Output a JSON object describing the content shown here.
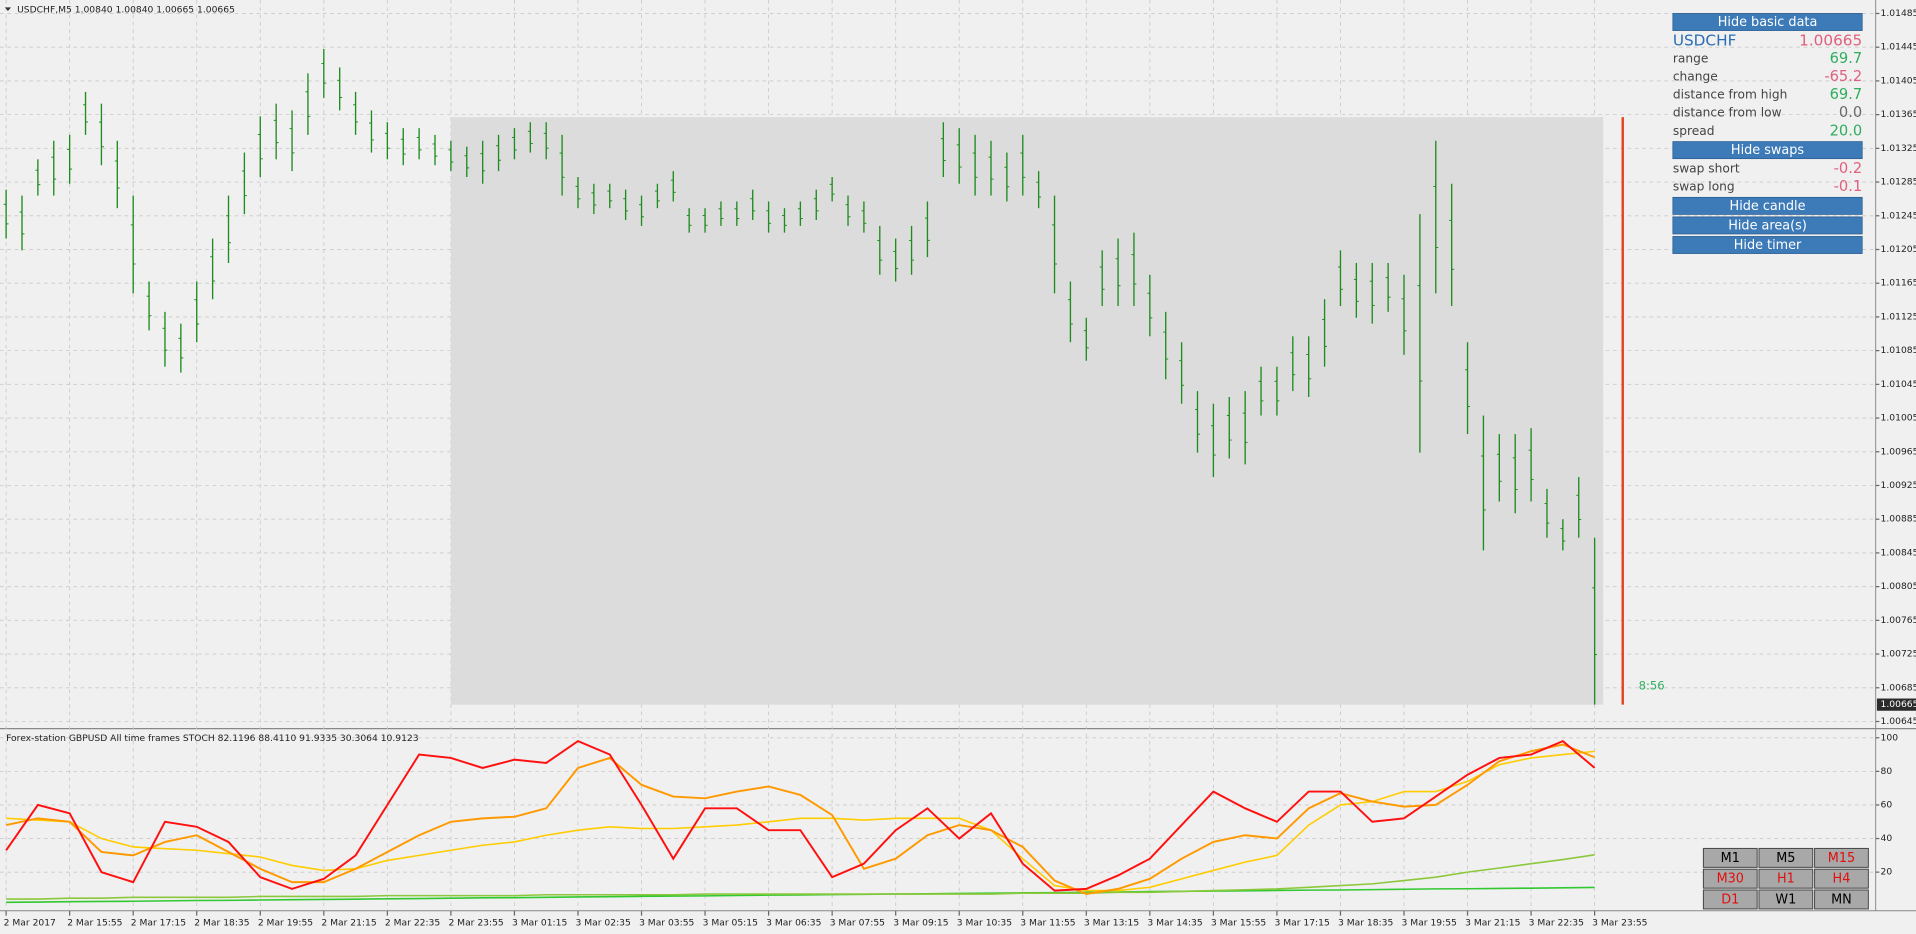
{
  "chart_data": [
    {
      "type": "ohlc",
      "title": "USDCHF,M5  1.00840 1.00840 1.00665 1.00665",
      "color": "#1e8c1e",
      "grid": true,
      "categories": [
        "2 Mar 2017",
        null,
        null,
        null,
        "2 Mar 15:55",
        null,
        null,
        null,
        "2 Mar 17:15",
        null,
        null,
        null,
        "2 Mar 18:35",
        null,
        null,
        null,
        "2 Mar 19:55",
        null,
        null,
        null,
        "2 Mar 21:15",
        null,
        null,
        null,
        "2 Mar 22:35",
        null,
        null,
        null,
        "2 Mar 23:55",
        null,
        null,
        null,
        "3 Mar 01:15",
        null,
        null,
        null,
        "3 Mar 02:35",
        null,
        null,
        null,
        "3 Mar 03:55",
        null,
        null,
        null,
        "3 Mar 05:15",
        null,
        null,
        null,
        "3 Mar 06:35",
        null,
        null,
        null,
        "3 Mar 07:55",
        null,
        null,
        null,
        "3 Mar 09:15",
        null,
        null,
        null,
        "3 Mar 10:35",
        null,
        null,
        null,
        "3 Mar 11:55",
        null,
        null,
        null,
        "3 Mar 13:15",
        null,
        null,
        null,
        "3 Mar 14:35",
        null,
        null,
        null,
        "3 Mar 15:55",
        null,
        null,
        null,
        "3 Mar 17:15",
        null,
        null,
        null,
        "3 Mar 18:35",
        null,
        null,
        null,
        "3 Mar 19:55",
        null,
        null,
        null,
        "3 Mar 21:15",
        null,
        null,
        null,
        "3 Mar 22:35",
        null,
        null,
        null,
        "3 Mar 23:55"
      ],
      "high": [
        1.01276,
        1.01269,
        1.01312,
        1.01334,
        1.01341,
        1.01392,
        1.01378,
        1.01334,
        1.01269,
        1.01167,
        1.01131,
        1.01117,
        1.01167,
        1.01218,
        1.01269,
        1.0132,
        1.01363,
        1.01378,
        1.0137,
        1.01414,
        1.01443,
        1.01421,
        1.01392,
        1.0137,
        1.01356,
        1.01349,
        1.01349,
        1.01341,
        1.01334,
        1.01327,
        1.01334,
        1.01341,
        1.01349,
        1.01356,
        1.01356,
        1.01341,
        1.01291,
        1.01283,
        1.01283,
        1.01276,
        1.01269,
        1.01283,
        1.01298,
        1.01254,
        1.01254,
        1.01262,
        1.01262,
        1.01276,
        1.01262,
        1.01254,
        1.01262,
        1.01276,
        1.01291,
        1.01269,
        1.01262,
        1.01233,
        1.01218,
        1.01233,
        1.01262,
        1.01356,
        1.01349,
        1.01341,
        1.01334,
        1.0132,
        1.01341,
        1.01298,
        1.01269,
        1.01167,
        1.01124,
        1.01204,
        1.01218,
        1.01225,
        1.01175,
        1.01131,
        1.01095,
        1.01037,
        1.01022,
        1.0103,
        1.01037,
        1.01066,
        1.01066,
        1.01102,
        1.01102,
        1.01146,
        1.01204,
        1.01189,
        1.01189,
        1.01189,
        1.01175,
        1.01247,
        1.01334,
        1.01283,
        1.01095,
        1.01008,
        1.00986,
        1.00986,
        1.00993,
        1.00921,
        1.00885,
        1.00935,
        1.00863
      ],
      "low": [
        1.01218,
        1.01204,
        1.01269,
        1.01269,
        1.01283,
        1.01341,
        1.01305,
        1.01254,
        1.01153,
        1.01109,
        1.01066,
        1.01059,
        1.01095,
        1.01146,
        1.01189,
        1.01247,
        1.01291,
        1.01312,
        1.01298,
        1.01341,
        1.01385,
        1.0137,
        1.01341,
        1.0132,
        1.01312,
        1.01305,
        1.01312,
        1.01305,
        1.01298,
        1.01291,
        1.01283,
        1.01298,
        1.01312,
        1.0132,
        1.01312,
        1.01269,
        1.01254,
        1.01247,
        1.01254,
        1.0124,
        1.01233,
        1.01254,
        1.01262,
        1.01225,
        1.01225,
        1.01233,
        1.01233,
        1.0124,
        1.01225,
        1.01225,
        1.01233,
        1.0124,
        1.01262,
        1.01233,
        1.01225,
        1.01175,
        1.01167,
        1.01175,
        1.01196,
        1.01291,
        1.01283,
        1.01269,
        1.01269,
        1.01262,
        1.01269,
        1.01254,
        1.01153,
        1.01095,
        1.01073,
        1.01138,
        1.01138,
        1.01138,
        1.01102,
        1.01051,
        1.01022,
        1.00964,
        1.00935,
        1.00957,
        1.0095,
        1.01008,
        1.01008,
        1.01037,
        1.0103,
        1.01066,
        1.01138,
        1.01124,
        1.01117,
        1.01131,
        1.0108,
        1.00964,
        1.01153,
        1.01138,
        1.00986,
        1.00848,
        1.00906,
        1.00892,
        1.00906,
        1.00863,
        1.00848,
        1.00863,
        1.00665
      ],
      "area": {
        "high": 1.01362,
        "low": 1.00665,
        "color": "#dcdcdc"
      },
      "last_price": 1.00665,
      "ylim": [
        1.00638,
        1.01501
      ],
      "yticks": [
        1.01485,
        1.01445,
        1.01405,
        1.01365,
        1.01325,
        1.01285,
        1.01245,
        1.01205,
        1.01165,
        1.01125,
        1.01085,
        1.01045,
        1.01005,
        1.00965,
        1.00925,
        1.00885,
        1.00845,
        1.00805,
        1.00765,
        1.00725,
        1.00685,
        1.00645
      ]
    },
    {
      "type": "line",
      "title": "Forex-station GBPUSD All time frames STOCH 82.1196 88.4110 91.9335 30.3064 10.9123",
      "grid": true,
      "ylim": [
        -3,
        104
      ],
      "yticks": [
        100,
        80,
        60,
        40,
        20
      ],
      "series": [
        {
          "color": "#32c832",
          "values": [
            2.0,
            2.2,
            2.4,
            2.5,
            2.7,
            2.9,
            3.1,
            3.2,
            3.4,
            3.6,
            3.8,
            3.9,
            4.1,
            4.3,
            4.5,
            4.7,
            4.8,
            5.0,
            5.2,
            5.4,
            5.6,
            5.7,
            5.9,
            6.1,
            6.3,
            6.4,
            6.6,
            6.8,
            7.0,
            7.1,
            7.3,
            7.5,
            7.7,
            7.8,
            8.0,
            8.2,
            8.4,
            8.6,
            8.7,
            8.9,
            9.1,
            9.3,
            9.4,
            9.6,
            9.8,
            10.0,
            10.1,
            10.3,
            10.5,
            10.7,
            10.9123
          ]
        },
        {
          "color": "#8cc83c",
          "values": [
            4,
            4,
            4.5,
            4.5,
            5,
            5,
            5,
            5,
            5.5,
            5.5,
            5.5,
            5.5,
            6,
            6,
            6,
            6,
            6,
            6.5,
            6.5,
            6.5,
            6.5,
            6.5,
            7,
            7,
            7,
            7,
            7,
            7,
            7,
            7,
            7,
            7,
            7.5,
            7.5,
            7.5,
            8,
            8,
            8.5,
            9,
            9.5,
            10,
            11,
            12,
            13,
            15,
            17,
            20,
            22.5,
            25,
            27.5,
            30.3064
          ]
        },
        {
          "color": "#ffcc00",
          "values": [
            52,
            51,
            50,
            40,
            35,
            34,
            33,
            31,
            29,
            24,
            21,
            22,
            27,
            30,
            33,
            36,
            38,
            42,
            45,
            47,
            46,
            46,
            47,
            48,
            50,
            52,
            52,
            51,
            52,
            52,
            52,
            45,
            28,
            12,
            9,
            9,
            11,
            16,
            21,
            26,
            30,
            48,
            60,
            62,
            68,
            68,
            74,
            84,
            88,
            90,
            91.9335
          ]
        },
        {
          "color": "#ff9900",
          "values": [
            48,
            52,
            50,
            32,
            30,
            38,
            42,
            32,
            22,
            14,
            14,
            22,
            32,
            42,
            50,
            52,
            53,
            58,
            82,
            88,
            72,
            65,
            64,
            68,
            71,
            66,
            54,
            22,
            28,
            42,
            48,
            45,
            35,
            15,
            7,
            10,
            16,
            28,
            38,
            42,
            40,
            58,
            67,
            62,
            59,
            60,
            72,
            86,
            92,
            96,
            88.411
          ]
        },
        {
          "color": "#ff1010",
          "values": [
            33,
            60,
            55,
            20,
            14,
            50,
            47,
            38,
            17,
            10,
            16,
            30,
            60,
            90,
            88,
            82,
            87,
            85,
            98,
            90,
            60,
            28,
            58,
            58,
            45,
            45,
            17,
            25,
            45,
            58,
            40,
            55,
            25,
            9,
            10,
            18,
            28,
            48,
            68,
            58,
            50,
            68,
            68,
            50,
            52,
            65,
            78,
            88,
            90,
            98,
            82.1196
          ]
        }
      ]
    }
  ],
  "panel": [
    {
      "button": "Hide basic data"
    },
    {
      "label": "USDCHF",
      "value": "1.00665",
      "label_color": "#2a6db5",
      "color": "#e0607e"
    },
    {
      "label": "range",
      "value": "69.7",
      "color": "#2fae5f"
    },
    {
      "label": "change",
      "value": "-65.2",
      "color": "#e0607e"
    },
    {
      "label": "distance from high",
      "value": "69.7",
      "color": "#2fae5f"
    },
    {
      "label": "distance from low",
      "value": "0.0",
      "color": "#6a6a6a"
    },
    {
      "label": "spread",
      "value": "20.0",
      "color": "#2fae5f"
    },
    {
      "button": "Hide swaps"
    },
    {
      "label": "swap short",
      "value": "-0.2",
      "color": "#e0607e"
    },
    {
      "label": "swap long",
      "value": "-0.1",
      "color": "#e0607e"
    },
    {
      "button": "Hide candle"
    },
    {
      "button": "Hide area(s)"
    },
    {
      "button": "Hide timer"
    }
  ],
  "timer": "8:56",
  "timeframes": [
    {
      "label": "M1",
      "color": "#000000"
    },
    {
      "label": "M5",
      "color": "#000000"
    },
    {
      "label": "M15",
      "color": "#e01010"
    },
    {
      "label": "M30",
      "color": "#e01010"
    },
    {
      "label": "H1",
      "color": "#e01010"
    },
    {
      "label": "H4",
      "color": "#e01010"
    },
    {
      "label": "D1",
      "color": "#e01010"
    },
    {
      "label": "W1",
      "color": "#000000"
    },
    {
      "label": "MN",
      "color": "#000000"
    }
  ]
}
